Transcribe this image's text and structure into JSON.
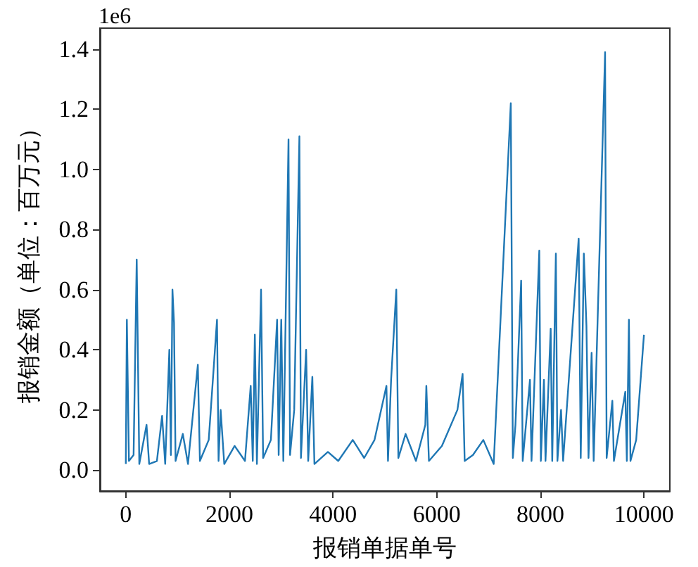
{
  "chart_data": {
    "type": "line",
    "xlabel": "报销单据单号",
    "ylabel": "报销金额（单位：百万元）",
    "annotations": [
      "1e6"
    ],
    "x": [
      0,
      20,
      60,
      150,
      210,
      260,
      400,
      450,
      600,
      700,
      760,
      840,
      870,
      900,
      930,
      960,
      1100,
      1200,
      1390,
      1430,
      1600,
      1760,
      1790,
      1830,
      1900,
      2100,
      2300,
      2410,
      2450,
      2490,
      2530,
      2610,
      2650,
      2800,
      2920,
      2950,
      3000,
      3040,
      3140,
      3170,
      3250,
      3350,
      3380,
      3480,
      3520,
      3600,
      3640,
      3900,
      4100,
      4380,
      4600,
      4800,
      5030,
      5060,
      5120,
      5220,
      5260,
      5400,
      5600,
      5780,
      5800,
      5850,
      6100,
      6400,
      6500,
      6540,
      6700,
      6900,
      7100,
      7430,
      7470,
      7520,
      7630,
      7660,
      7800,
      7830,
      7980,
      8010,
      8070,
      8100,
      8200,
      8230,
      8300,
      8330,
      8400,
      8440,
      8740,
      8780,
      8840,
      8890,
      8930,
      8990,
      9030,
      9250,
      9280,
      9390,
      9420,
      9640,
      9670,
      9710,
      9740,
      9850,
      10000
    ],
    "series": [
      {
        "color": "#1f77b4",
        "values": [
          0.02,
          0.5,
          0.03,
          0.05,
          0.7,
          0.02,
          0.15,
          0.02,
          0.03,
          0.18,
          0.02,
          0.4,
          0.05,
          0.6,
          0.49,
          0.03,
          0.12,
          0.02,
          0.35,
          0.03,
          0.1,
          0.5,
          0.03,
          0.2,
          0.02,
          0.08,
          0.03,
          0.28,
          0.03,
          0.45,
          0.02,
          0.6,
          0.04,
          0.1,
          0.5,
          0.05,
          0.5,
          0.03,
          1.1,
          0.05,
          0.2,
          1.11,
          0.04,
          0.4,
          0.03,
          0.31,
          0.02,
          0.06,
          0.03,
          0.1,
          0.04,
          0.1,
          0.28,
          0.03,
          0.3,
          0.6,
          0.04,
          0.12,
          0.03,
          0.15,
          0.28,
          0.03,
          0.08,
          0.2,
          0.32,
          0.03,
          0.05,
          0.1,
          0.02,
          1.22,
          0.04,
          0.15,
          0.63,
          0.03,
          0.3,
          0.03,
          0.73,
          0.03,
          0.3,
          0.03,
          0.47,
          0.03,
          0.72,
          0.03,
          0.2,
          0.03,
          0.77,
          0.04,
          0.72,
          0.48,
          0.04,
          0.39,
          0.03,
          1.39,
          0.04,
          0.23,
          0.03,
          0.26,
          0.03,
          0.5,
          0.03,
          0.1,
          0.45
        ]
      }
    ],
    "xlim": [
      -500,
      10500
    ],
    "xticks": [
      0,
      2000,
      4000,
      6000,
      8000,
      10000
    ],
    "ylim": [
      -0.07,
      1.47
    ],
    "yticks": [
      {
        "value": 0,
        "label": "0.0"
      },
      {
        "value": 0.2,
        "label": "0.2"
      },
      {
        "value": 0.4,
        "label": "0.4"
      },
      {
        "value": 0.6,
        "label": "0.6"
      },
      {
        "value": 0.8,
        "label": "0.8"
      },
      {
        "value": 1.0,
        "label": "1.0"
      },
      {
        "value": 1.2,
        "label": "1.2"
      },
      {
        "value": 1.4,
        "label": "1.4"
      }
    ],
    "grid": false,
    "marker": "none",
    "line_style": "solid"
  }
}
